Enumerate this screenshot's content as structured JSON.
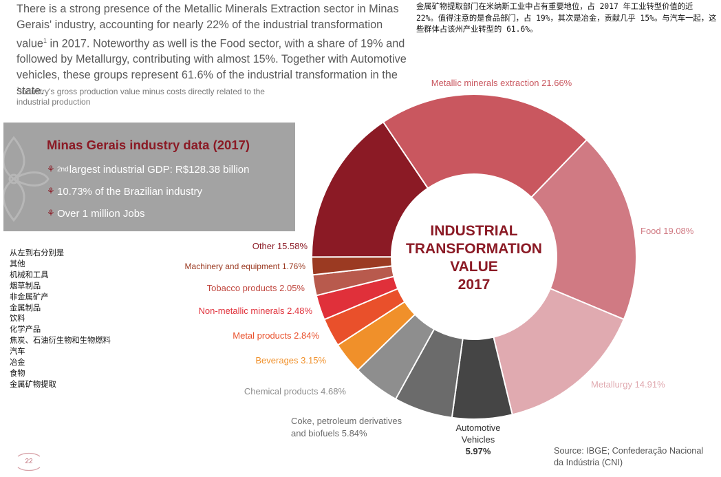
{
  "intro": {
    "part1": "There is a strong presence of the Metallic Minerals Extraction sector in Minas Gerais' industry, accounting for nearly 22% of the industrial transformation value",
    "sup": "1",
    "part2": " in 2017. Noteworthy as well is the Food sector, with a share of 19% and followed by Metallurgy, contributing with almost 15%. Together with Automotive vehicles, these groups represent 61.6% of the industrial transformation in the state."
  },
  "footnote": {
    "sup": "1",
    "text": "Industry's gross production value minus costs directly related to the industrial production"
  },
  "cn_note": "金属矿物提取部门在米纳斯工业中占有重要地位，占 2017 年工业转型价值的近 22%。值得注意的是食品部门，占 19%，其次是冶金，贡献几乎 15%。与汽车一起，这些群体占该州产业转型的 61.6%。",
  "info_box": {
    "title": "Minas Gerais industry data (2017)",
    "bullet_glyph": "⚘",
    "item1_sup": "2nd",
    "item1_text": " largest industrial GDP: R$128.38 billion",
    "item2_text": "10.73% of the Brazilian industry",
    "item3_text": "Over 1 million Jobs"
  },
  "cn_legend": [
    "从左到右分别是",
    "其他",
    "机械和工具",
    "烟草制品",
    "非金属矿产",
    "金属制品",
    "饮料",
    "化学产品",
    "焦炭、石油衍生物和生物燃料",
    "汽车",
    "冶金",
    "食物",
    "金属矿物提取"
  ],
  "chart_data": {
    "type": "pie",
    "variant": "donut",
    "center_title": [
      "INDUSTRIAL",
      "TRANSFORMATION",
      "VALUE",
      "2017"
    ],
    "slices": [
      {
        "label": "Metallic minerals extraction",
        "value": 21.66,
        "value_text": "21.66%",
        "color": "#c9575f",
        "label_color": "#c9575f"
      },
      {
        "label": "Food",
        "value": 19.08,
        "value_text": "19.08%",
        "color": "#d07a83",
        "label_color": "#d07a83"
      },
      {
        "label": "Metallurgy",
        "value": 14.91,
        "value_text": "14.91%",
        "color": "#e0aab0",
        "label_color": "#e0aab0"
      },
      {
        "label": "Automotive Vehicles",
        "value": 5.97,
        "value_text": "5.97%",
        "color": "#454545",
        "label_color": "#333333"
      },
      {
        "label": "Coke, petroleum derivatives and biofuels",
        "value": 5.84,
        "value_text": "5.84%",
        "color": "#6b6b6b",
        "label_color": "#6b6b6b"
      },
      {
        "label": "Chemical products",
        "value": 4.68,
        "value_text": "4.68%",
        "color": "#8e8e8e",
        "label_color": "#8e8e8e"
      },
      {
        "label": "Beverages",
        "value": 3.15,
        "value_text": "3.15%",
        "color": "#f0902a",
        "label_color": "#f0902a"
      },
      {
        "label": "Metal products",
        "value": 2.84,
        "value_text": "2.84%",
        "color": "#e9502b",
        "label_color": "#e9502b"
      },
      {
        "label": "Non-metallic minerals",
        "value": 2.48,
        "value_text": "2.48%",
        "color": "#e0303a",
        "label_color": "#e0303a"
      },
      {
        "label": "Tobacco products",
        "value": 2.05,
        "value_text": "2.05%",
        "color": "#b85a4d",
        "label_color": "#c0463e"
      },
      {
        "label": "Machinery and equipment",
        "value": 1.76,
        "value_text": "1.76%",
        "color": "#9b3a22",
        "label_color": "#9b3a22"
      },
      {
        "label": "Other",
        "value": 15.58,
        "value_text": "15.58%",
        "color": "#8b1a25",
        "label_color": "#8b1a25"
      }
    ]
  },
  "source": [
    "Source: IBGE; Confederação Nacional",
    "da Indústria (CNI)"
  ],
  "page_number": "22"
}
